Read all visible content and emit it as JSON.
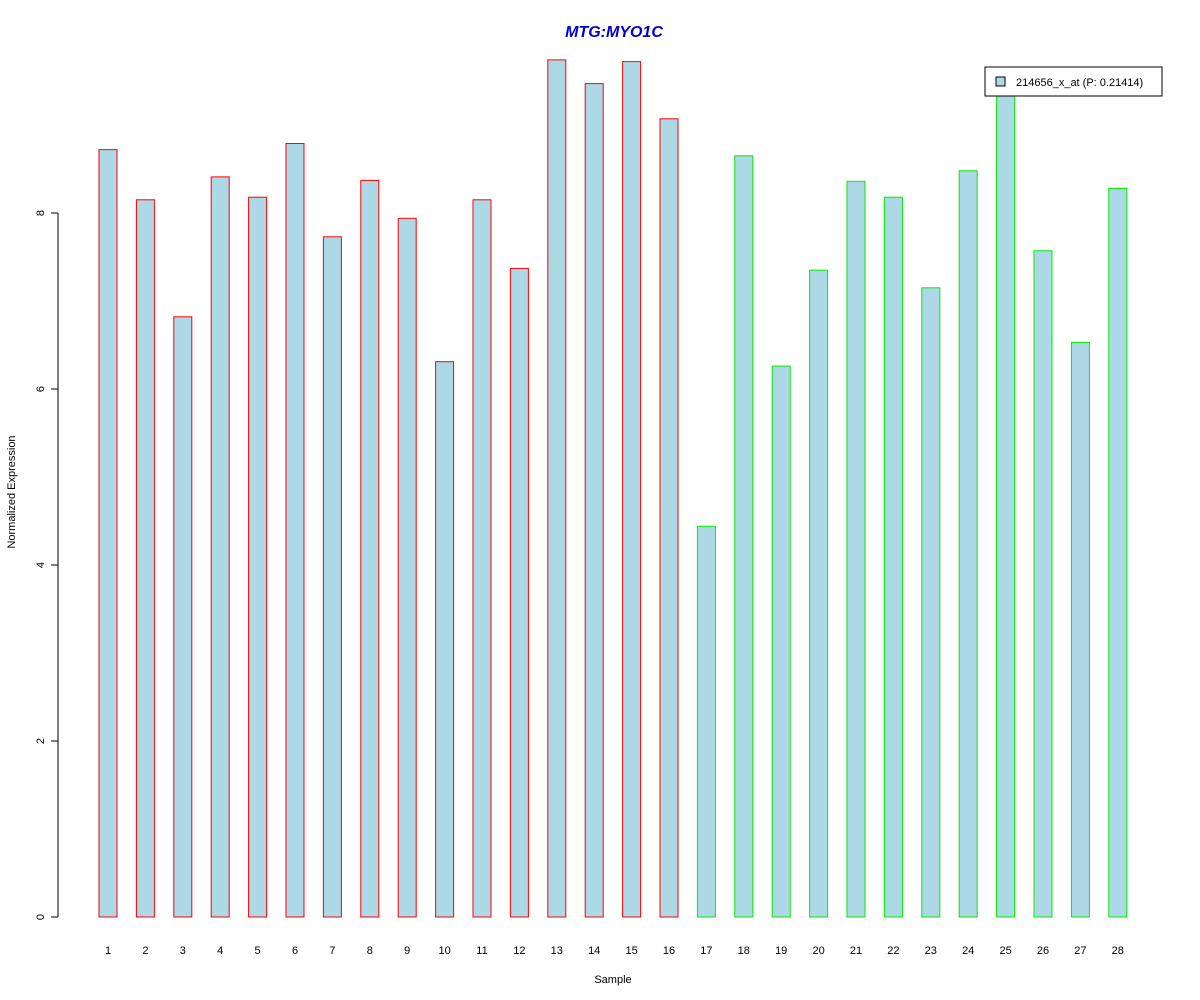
{
  "chart_data": {
    "type": "bar",
    "title": "MTG:MYO1C",
    "xlabel": "Sample",
    "ylabel": "Normalized Expression",
    "ylim": [
      0,
      9.8
    ],
    "yticks": [
      0,
      2,
      4,
      6,
      8
    ],
    "categories": [
      "1",
      "2",
      "3",
      "4",
      "5",
      "6",
      "7",
      "8",
      "9",
      "10",
      "11",
      "12",
      "13",
      "14",
      "15",
      "16",
      "17",
      "18",
      "19",
      "20",
      "21",
      "22",
      "23",
      "24",
      "25",
      "26",
      "27",
      "28"
    ],
    "values": [
      8.72,
      8.15,
      6.82,
      8.41,
      8.18,
      8.79,
      7.73,
      8.37,
      7.94,
      6.31,
      8.15,
      7.37,
      9.74,
      9.47,
      9.72,
      9.07,
      4.44,
      8.65,
      6.26,
      7.35,
      8.36,
      8.18,
      7.15,
      8.48,
      9.6,
      7.57,
      6.53,
      8.28
    ],
    "group_border_colors": [
      "#ff0000",
      "#ff0000",
      "#ff0000",
      "#ff0000",
      "#ff0000",
      "#ff0000",
      "#ff0000",
      "#ff0000",
      "#ff0000",
      "#ff0000",
      "#ff0000",
      "#ff0000",
      "#ff0000",
      "#ff0000",
      "#ff0000",
      "#ff0000",
      "#00ee00",
      "#00ee00",
      "#00ee00",
      "#00ee00",
      "#00ee00",
      "#00ee00",
      "#00ee00",
      "#00ee00",
      "#00ee00",
      "#00ee00",
      "#00ee00",
      "#00ee00"
    ],
    "bar_fill": "#add8e6",
    "title_color": "#0000cd",
    "legend": {
      "placement": "top-right",
      "entries": [
        {
          "label": "214656_x_at (P: 0.21414)",
          "color": "#add8e6"
        }
      ]
    },
    "grid": false
  }
}
